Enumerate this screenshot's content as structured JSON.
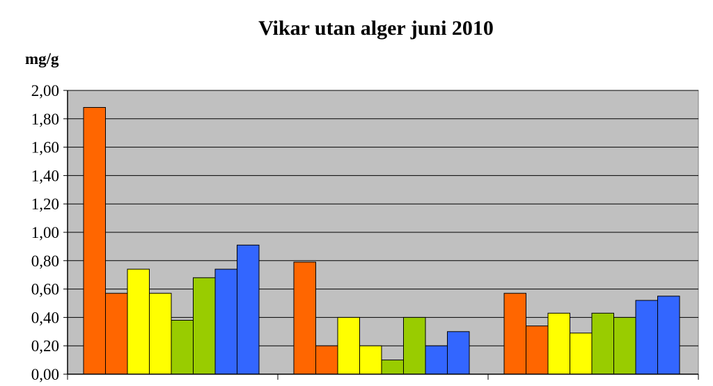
{
  "chart_data": {
    "type": "bar",
    "title": "Vikar utan alger juni 2010",
    "ylabel": "mg/g",
    "xlabel": "",
    "ylim": [
      0,
      2
    ],
    "yticks": [
      "0,00",
      "0,20",
      "0,40",
      "0,60",
      "0,80",
      "1,00",
      "1,20",
      "1,40",
      "1,60",
      "1,80",
      "2,00"
    ],
    "grid": true,
    "legend": "none",
    "group_count": 3,
    "bars_per_group": 8,
    "values": [
      [
        1.88,
        0.57,
        0.74,
        0.57,
        0.38,
        0.68,
        0.74,
        0.91
      ],
      [
        0.79,
        0.2,
        0.4,
        0.2,
        0.1,
        0.4,
        0.2,
        0.3
      ],
      [
        0.57,
        0.34,
        0.43,
        0.29,
        0.43,
        0.4,
        0.52,
        0.55
      ]
    ],
    "bar_colors": [
      "#ff6600",
      "#ff6600",
      "#ffff00",
      "#ffff00",
      "#99cc00",
      "#99cc00",
      "#3366ff",
      "#3366ff"
    ],
    "plot_background": "#c0c0c0"
  }
}
